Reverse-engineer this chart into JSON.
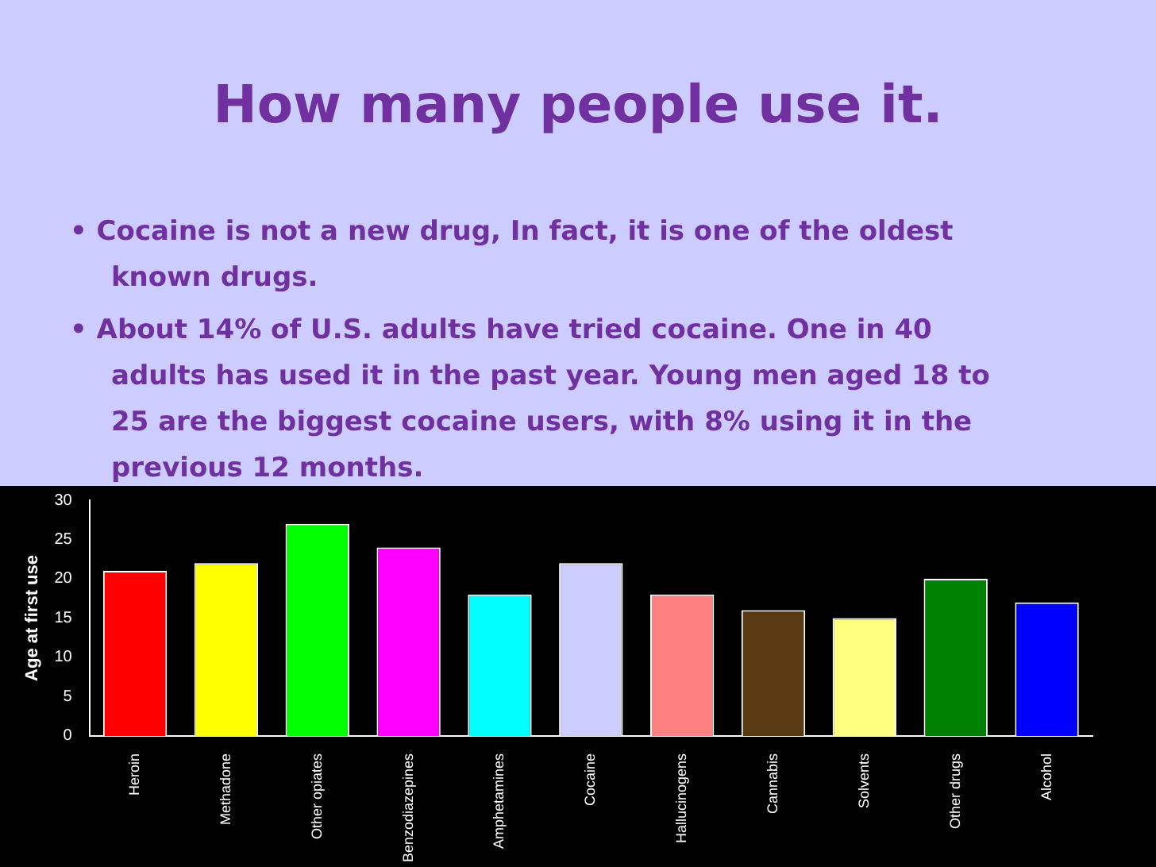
{
  "chart_data": {
    "type": "bar",
    "title": "How many people use it.",
    "annotations": [
      "• Cocaine is not a new drug, In fact, it is one of the oldest known drugs.",
      "• About 14% of U.S. adults have tried cocaine. One in 40 adults has used it in the past year. Young men aged 18 to 25 are the biggest cocaine users, with 8% using it in the previous 12 months."
    ],
    "ylabel": "Age at first use",
    "categories": [
      "Heroin",
      "Methadone",
      "Other opiates",
      "Benzodiazepines",
      "Amphetamines",
      "Cocaine",
      "Hallucinogens",
      "Cannabis",
      "Solvents",
      "Other drugs",
      "Alcohol"
    ],
    "values": [
      21,
      22,
      27,
      24,
      18,
      22,
      18,
      16,
      15,
      20,
      17
    ],
    "colors": [
      "#ff0000",
      "#ffff00",
      "#00ff00",
      "#ff00ff",
      "#00ffff",
      "#ccccff",
      "#ff8080",
      "#5a3a12",
      "#ffff80",
      "#008000",
      "#0000ff"
    ],
    "ylim": [
      0,
      30
    ],
    "yticks": [
      0,
      5,
      10,
      15,
      20,
      25,
      30
    ],
    "grid": false,
    "legend": false
  }
}
